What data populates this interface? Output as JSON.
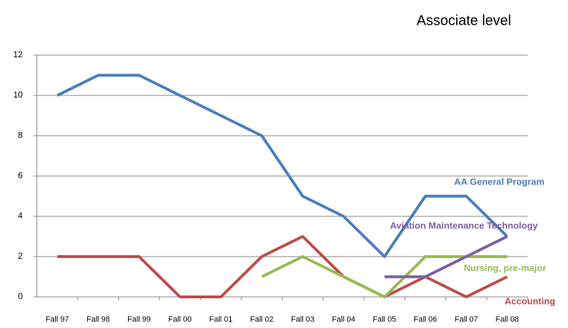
{
  "chart_data": {
    "type": "line",
    "title": "Associate level",
    "categories": [
      "Fall 97",
      "Fall 98",
      "Fall 99",
      "Fall 00",
      "Fall 01",
      "Fall 02",
      "Fall 03",
      "Fall 04",
      "Fall 05",
      "Fall 06",
      "Fall 07",
      "Fall 08"
    ],
    "series": [
      {
        "name": "AA General Program",
        "color": "#4a7ebb",
        "values": [
          10,
          11,
          11,
          10,
          9,
          8,
          5,
          4,
          2,
          5,
          5,
          3
        ]
      },
      {
        "name": "Accounting",
        "color": "#be4b48",
        "values": [
          2,
          2,
          2,
          0,
          0,
          2,
          3,
          1,
          0,
          1,
          0,
          1
        ]
      },
      {
        "name": "Nursing, pre-major",
        "color": "#98b954",
        "values": [
          null,
          null,
          null,
          null,
          null,
          1,
          2,
          1,
          0,
          2,
          2,
          2
        ]
      },
      {
        "name": "Aviation Maintenance Technology",
        "color": "#7d5fa0",
        "values": [
          null,
          null,
          null,
          null,
          null,
          null,
          null,
          null,
          1,
          1,
          2,
          3
        ]
      }
    ],
    "ylim": [
      0,
      12
    ],
    "yticks": [
      0,
      2,
      4,
      6,
      8,
      10,
      12
    ],
    "grid": true
  }
}
